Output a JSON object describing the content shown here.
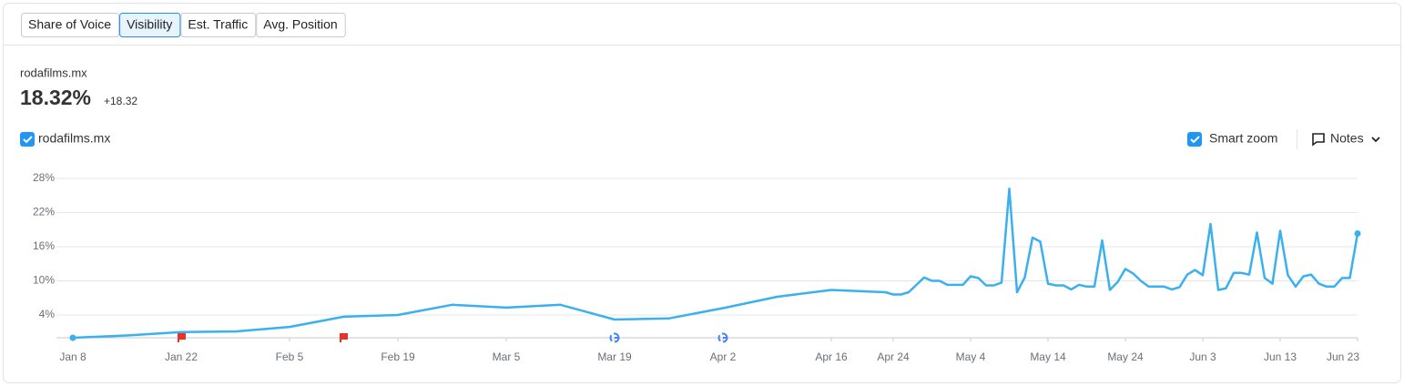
{
  "tabs": [
    {
      "label": "Share of Voice",
      "active": false
    },
    {
      "label": "Visibility",
      "active": true
    },
    {
      "label": "Est. Traffic",
      "active": false
    },
    {
      "label": "Avg. Position",
      "active": false
    }
  ],
  "summary": {
    "domain": "rodafilms.mx",
    "value": "18.32%",
    "change": "+18.32"
  },
  "controls": {
    "smart_zoom": "Smart zoom",
    "notes": "Notes"
  },
  "chart_data": {
    "type": "line",
    "x": [
      "Jan 8",
      "Jan 15",
      "Jan 22",
      "Jan 29",
      "Feb 5",
      "Feb 12",
      "Feb 19",
      "Feb 26",
      "Mar 5",
      "Mar 12",
      "Mar 19",
      "Mar 26",
      "Apr 2",
      "Apr 9",
      "Apr 16",
      "Apr 23",
      "Apr 24",
      "Apr 25",
      "Apr 26",
      "Apr 27",
      "Apr 28",
      "Apr 29",
      "Apr 30",
      "May 1",
      "May 2",
      "May 3",
      "May 4",
      "May 5",
      "May 6",
      "May 7",
      "May 8",
      "May 9",
      "May 10",
      "May 11",
      "May 12",
      "May 13",
      "May 14",
      "May 15",
      "May 16",
      "May 17",
      "May 18",
      "May 19",
      "May 20",
      "May 21",
      "May 22",
      "May 23",
      "May 24",
      "May 25",
      "May 26",
      "May 27",
      "May 28",
      "May 29",
      "May 30",
      "May 31",
      "Jun 1",
      "Jun 2",
      "Jun 3",
      "Jun 4",
      "Jun 5",
      "Jun 6",
      "Jun 7",
      "Jun 8",
      "Jun 9",
      "Jun 10",
      "Jun 11",
      "Jun 12",
      "Jun 13",
      "Jun 14",
      "Jun 15",
      "Jun 16",
      "Jun 17",
      "Jun 18",
      "Jun 19",
      "Jun 20",
      "Jun 21",
      "Jun 22",
      "Jun 23"
    ],
    "series": [
      {
        "name": "rodafilms.mx",
        "color": "#3bb0ef",
        "values": [
          0,
          0.4,
          1.0,
          1.1,
          1.9,
          3.7,
          4.0,
          5.8,
          5.3,
          5.8,
          3.2,
          3.4,
          5.2,
          7.2,
          8.4,
          8.0,
          7.6,
          7.6,
          8.0,
          9.3,
          10.6,
          10.0,
          10.0,
          9.3,
          9.3,
          9.3,
          10.8,
          10.5,
          9.2,
          9.2,
          9.7,
          26.2,
          8.0,
          10.6,
          17.6,
          16.9,
          9.5,
          9.2,
          9.2,
          8.5,
          9.3,
          9.0,
          9.0,
          17.1,
          8.4,
          9.8,
          12.1,
          11.3,
          10.0,
          9.0,
          9.0,
          9.0,
          8.5,
          8.9,
          11.1,
          11.9,
          11.0,
          20.0,
          8.4,
          8.7,
          11.4,
          11.4,
          11.1,
          18.5,
          10.5,
          9.5,
          18.8,
          11.0,
          9.0,
          10.8,
          11.1,
          9.5,
          9.0,
          9.0,
          10.5,
          10.5,
          18.32
        ]
      }
    ],
    "xlim": [
      "Jan 8",
      "Jun 23"
    ],
    "xticks": [
      "Jan 8",
      "Jan 22",
      "Feb 5",
      "Feb 19",
      "Mar 5",
      "Mar 19",
      "Apr 2",
      "Apr 16",
      "Apr 24",
      "May 4",
      "May 14",
      "May 24",
      "Jun 3",
      "Jun 13",
      "Jun 23"
    ],
    "ylim": [
      0,
      28
    ],
    "yticks": [
      {
        "value": 4,
        "label": "4%"
      },
      {
        "value": 10,
        "label": "10%"
      },
      {
        "value": 16,
        "label": "16%"
      },
      {
        "value": 22,
        "label": "22%"
      },
      {
        "value": 28,
        "label": "28%"
      }
    ],
    "grid": true
  }
}
